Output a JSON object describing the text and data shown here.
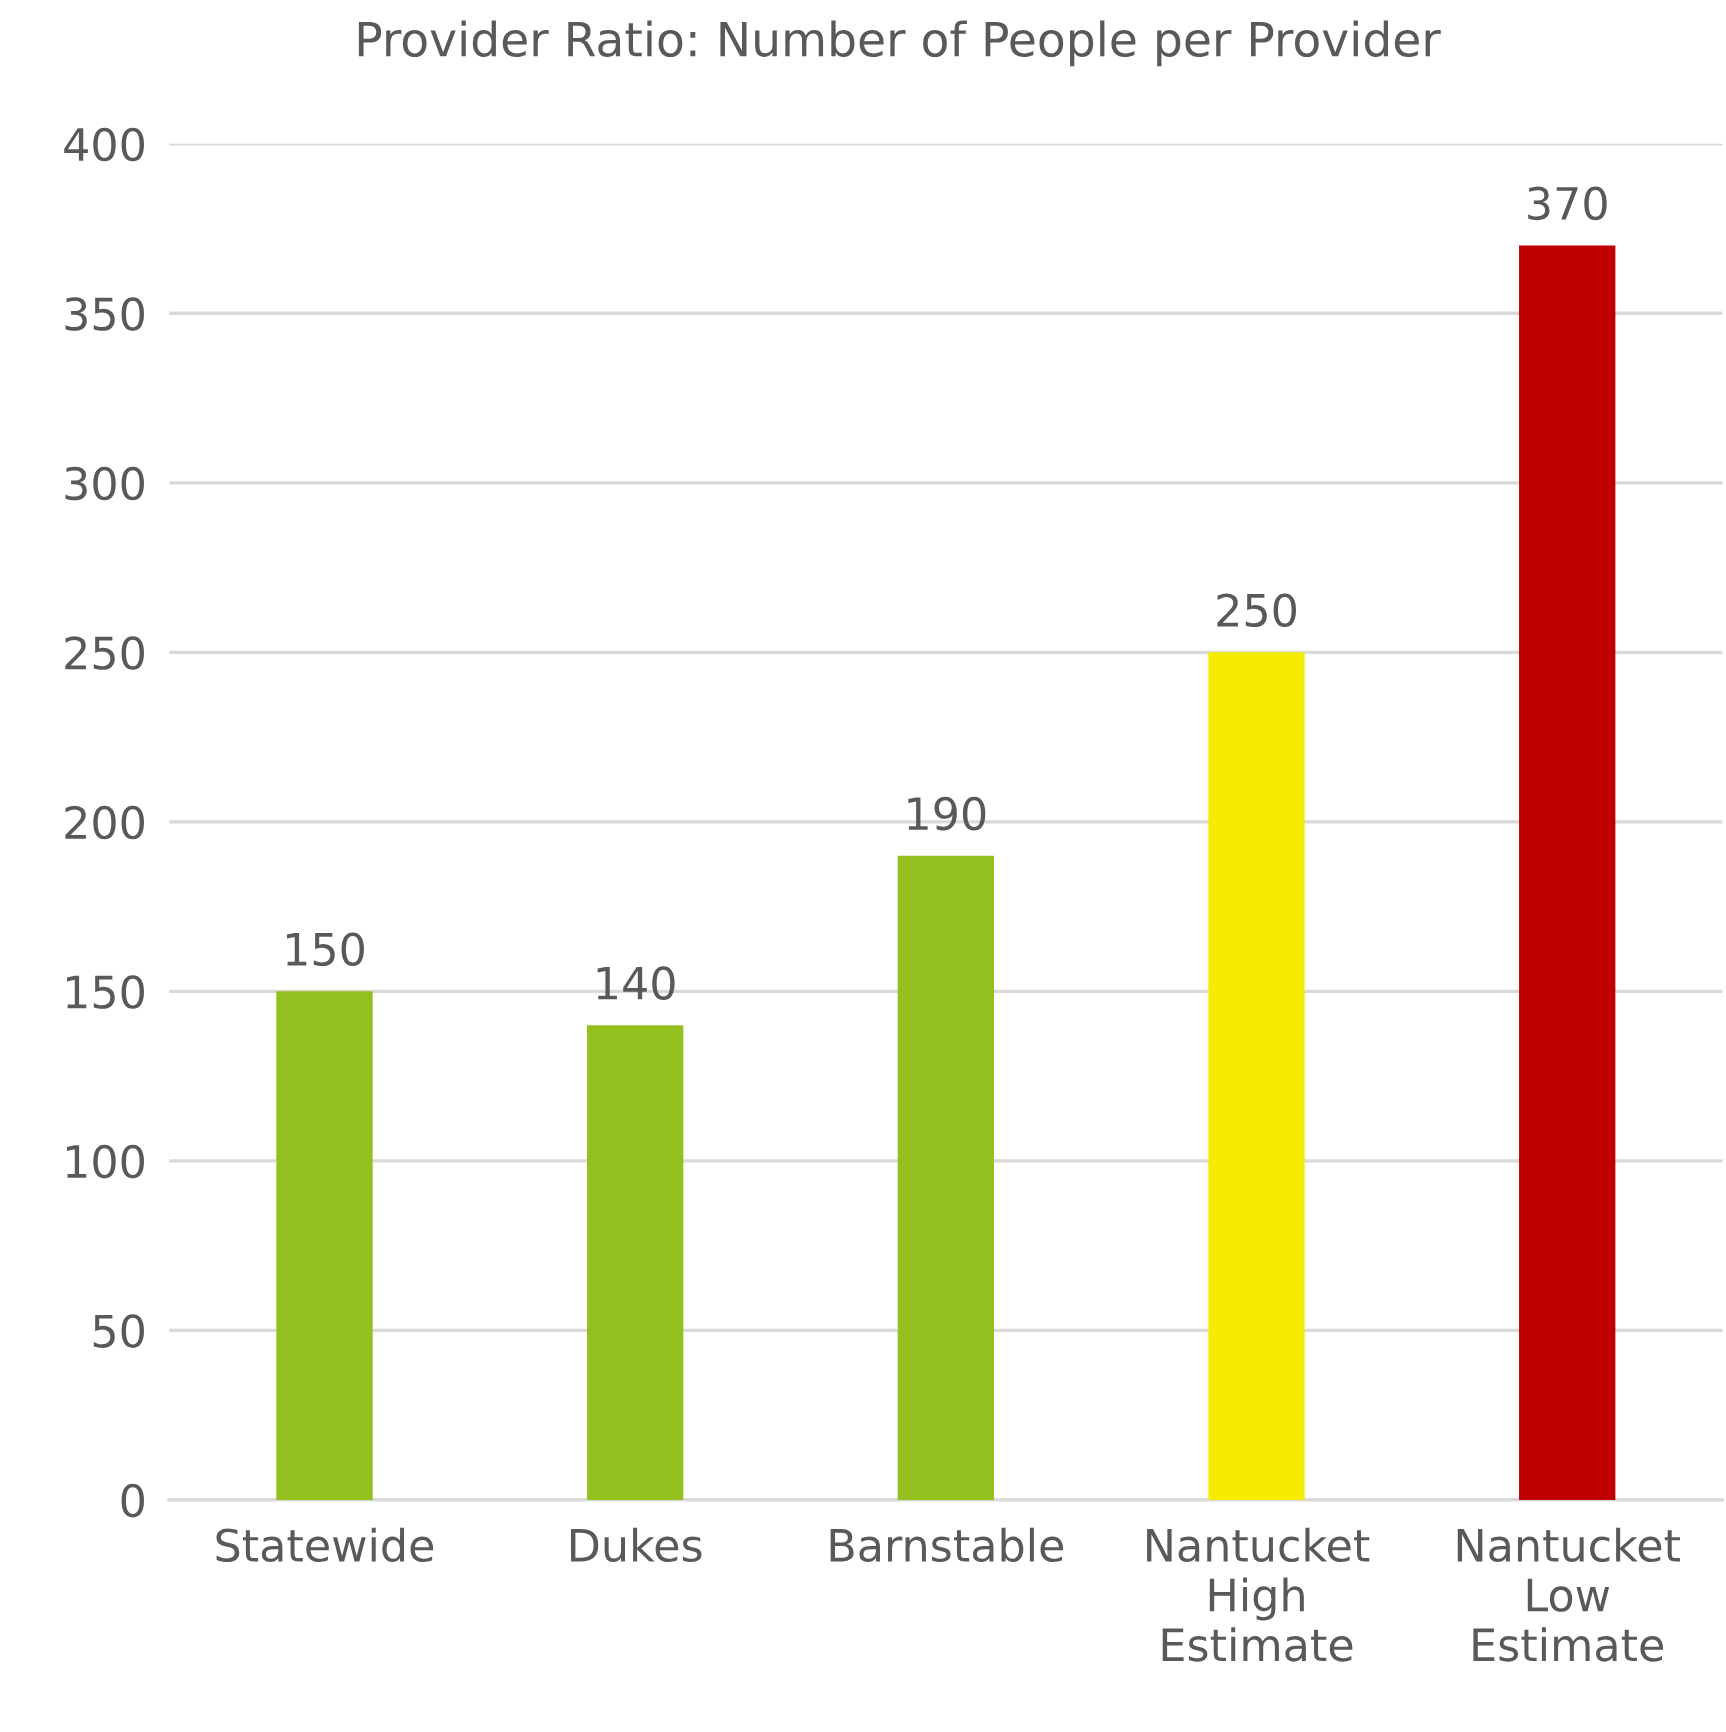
{
  "chart_data": {
    "type": "bar",
    "title": "Provider Ratio: Number of People per Provider",
    "categories": [
      "Statewide",
      "Dukes",
      "Barnstable",
      "Nantucket\nHigh\nEstimate",
      "Nantucket\nLow\nEstimate"
    ],
    "values": [
      150,
      140,
      190,
      250,
      370
    ],
    "colors": [
      "#93c01f",
      "#93c01f",
      "#93c01f",
      "#f5ec00",
      "#c00000"
    ],
    "ylim": [
      0,
      400
    ],
    "yticks": [
      0,
      50,
      100,
      150,
      200,
      250,
      300,
      350,
      400
    ],
    "grid": "y",
    "data_labels": true
  }
}
